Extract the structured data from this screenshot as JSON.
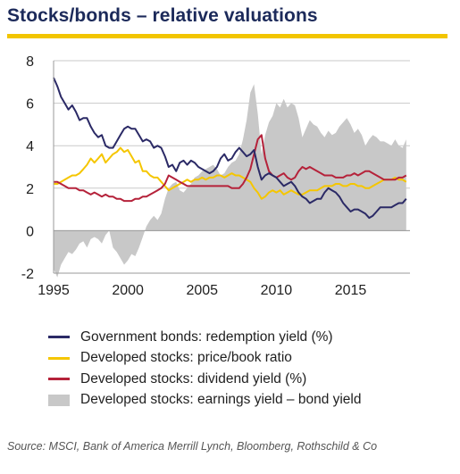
{
  "title": "Stocks/bonds – relative valuations",
  "source": "Source: MSCI, Bank of America Merrill Lynch, Bloomberg, Rothschild & Co",
  "colors": {
    "accent_rule": "#f2c500",
    "title": "#1c2a5a",
    "gov_bonds": "#2b2a66",
    "price_book": "#f5c600",
    "dividend": "#b5223a",
    "earnings_gap": "#c8c8c8"
  },
  "chart_data": {
    "type": "line",
    "title": "Stocks/bonds – relative valuations",
    "xlabel": "",
    "ylabel": "",
    "xlim": [
      1995,
      2019
    ],
    "ylim": [
      -2,
      8
    ],
    "x_ticks": [
      "1995",
      "2000",
      "2005",
      "2010",
      "2015"
    ],
    "y_ticks": [
      "8",
      "6",
      "4",
      "2",
      "0",
      "-2"
    ],
    "grid": "horizontal",
    "legend_position": "bottom",
    "series": [
      {
        "name": "Government bonds: redemption yield (%)",
        "type": "line",
        "color_key": "gov_bonds",
        "x": [
          1995.0,
          1995.25,
          1995.5,
          1995.75,
          1996.0,
          1996.25,
          1996.5,
          1996.75,
          1997.0,
          1997.25,
          1997.5,
          1997.75,
          1998.0,
          1998.25,
          1998.5,
          1998.75,
          1999.0,
          1999.25,
          1999.5,
          1999.75,
          2000.0,
          2000.25,
          2000.5,
          2000.75,
          2001.0,
          2001.25,
          2001.5,
          2001.75,
          2002.0,
          2002.25,
          2002.5,
          2002.75,
          2003.0,
          2003.25,
          2003.5,
          2003.75,
          2004.0,
          2004.25,
          2004.5,
          2004.75,
          2005.0,
          2005.25,
          2005.5,
          2005.75,
          2006.0,
          2006.25,
          2006.5,
          2006.75,
          2007.0,
          2007.25,
          2007.5,
          2007.75,
          2008.0,
          2008.25,
          2008.5,
          2008.75,
          2009.0,
          2009.25,
          2009.5,
          2009.75,
          2010.0,
          2010.25,
          2010.5,
          2010.75,
          2011.0,
          2011.25,
          2011.5,
          2011.75,
          2012.0,
          2012.25,
          2012.5,
          2012.75,
          2013.0,
          2013.25,
          2013.5,
          2013.75,
          2014.0,
          2014.25,
          2014.5,
          2014.75,
          2015.0,
          2015.25,
          2015.5,
          2015.75,
          2016.0,
          2016.25,
          2016.5,
          2016.75,
          2017.0,
          2017.25,
          2017.5,
          2017.75,
          2018.0,
          2018.25,
          2018.5,
          2018.75
        ],
        "values": [
          7.2,
          6.8,
          6.3,
          6.0,
          5.7,
          5.9,
          5.6,
          5.2,
          5.3,
          5.3,
          4.9,
          4.6,
          4.4,
          4.5,
          4.0,
          3.9,
          3.9,
          4.2,
          4.5,
          4.8,
          4.9,
          4.8,
          4.8,
          4.5,
          4.2,
          4.3,
          4.2,
          3.9,
          4.0,
          3.9,
          3.5,
          3.0,
          3.1,
          2.8,
          3.2,
          3.3,
          3.1,
          3.3,
          3.2,
          3.0,
          2.9,
          2.8,
          2.7,
          2.8,
          3.0,
          3.4,
          3.6,
          3.3,
          3.4,
          3.7,
          3.9,
          3.7,
          3.5,
          3.6,
          3.8,
          3.0,
          2.4,
          2.6,
          2.7,
          2.6,
          2.5,
          2.3,
          2.1,
          2.2,
          2.3,
          2.1,
          1.8,
          1.6,
          1.5,
          1.3,
          1.4,
          1.5,
          1.5,
          1.8,
          2.0,
          1.9,
          1.8,
          1.6,
          1.3,
          1.1,
          0.9,
          1.0,
          1.0,
          0.9,
          0.8,
          0.6,
          0.7,
          0.9,
          1.1,
          1.1,
          1.1,
          1.1,
          1.2,
          1.3,
          1.3,
          1.5
        ]
      },
      {
        "name": "Developed stocks: price/book ratio",
        "type": "line",
        "color_key": "price_book",
        "x": [
          1995.0,
          1995.25,
          1995.5,
          1995.75,
          1996.0,
          1996.25,
          1996.5,
          1996.75,
          1997.0,
          1997.25,
          1997.5,
          1997.75,
          1998.0,
          1998.25,
          1998.5,
          1998.75,
          1999.0,
          1999.25,
          1999.5,
          1999.75,
          2000.0,
          2000.25,
          2000.5,
          2000.75,
          2001.0,
          2001.25,
          2001.5,
          2001.75,
          2002.0,
          2002.25,
          2002.5,
          2002.75,
          2003.0,
          2003.25,
          2003.5,
          2003.75,
          2004.0,
          2004.25,
          2004.5,
          2004.75,
          2005.0,
          2005.25,
          2005.5,
          2005.75,
          2006.0,
          2006.25,
          2006.5,
          2006.75,
          2007.0,
          2007.25,
          2007.5,
          2007.75,
          2008.0,
          2008.25,
          2008.5,
          2008.75,
          2009.0,
          2009.25,
          2009.5,
          2009.75,
          2010.0,
          2010.25,
          2010.5,
          2010.75,
          2011.0,
          2011.25,
          2011.5,
          2011.75,
          2012.0,
          2012.25,
          2012.5,
          2012.75,
          2013.0,
          2013.25,
          2013.5,
          2013.75,
          2014.0,
          2014.25,
          2014.5,
          2014.75,
          2015.0,
          2015.25,
          2015.5,
          2015.75,
          2016.0,
          2016.25,
          2016.5,
          2016.75,
          2017.0,
          2017.25,
          2017.5,
          2017.75,
          2018.0,
          2018.25,
          2018.5,
          2018.75
        ],
        "values": [
          2.2,
          2.2,
          2.3,
          2.4,
          2.5,
          2.6,
          2.6,
          2.7,
          2.9,
          3.1,
          3.4,
          3.2,
          3.4,
          3.6,
          3.2,
          3.4,
          3.6,
          3.7,
          3.9,
          3.7,
          3.8,
          3.5,
          3.2,
          3.3,
          2.8,
          2.8,
          2.6,
          2.5,
          2.5,
          2.3,
          2.1,
          1.9,
          2.0,
          2.1,
          2.2,
          2.3,
          2.4,
          2.3,
          2.4,
          2.4,
          2.5,
          2.4,
          2.5,
          2.5,
          2.6,
          2.6,
          2.5,
          2.6,
          2.7,
          2.6,
          2.6,
          2.5,
          2.4,
          2.3,
          2.0,
          1.8,
          1.5,
          1.6,
          1.8,
          1.9,
          1.8,
          1.9,
          1.7,
          1.8,
          1.9,
          1.8,
          1.7,
          1.7,
          1.8,
          1.9,
          1.9,
          1.9,
          2.0,
          2.1,
          2.1,
          2.1,
          2.2,
          2.2,
          2.1,
          2.1,
          2.2,
          2.2,
          2.1,
          2.1,
          2.0,
          2.0,
          2.1,
          2.2,
          2.3,
          2.4,
          2.4,
          2.4,
          2.5,
          2.4,
          2.4,
          2.3
        ]
      },
      {
        "name": "Developed stocks: dividend yield (%)",
        "type": "line",
        "color_key": "dividend",
        "x": [
          1995.0,
          1995.25,
          1995.5,
          1995.75,
          1996.0,
          1996.25,
          1996.5,
          1996.75,
          1997.0,
          1997.25,
          1997.5,
          1997.75,
          1998.0,
          1998.25,
          1998.5,
          1998.75,
          1999.0,
          1999.25,
          1999.5,
          1999.75,
          2000.0,
          2000.25,
          2000.5,
          2000.75,
          2001.0,
          2001.25,
          2001.5,
          2001.75,
          2002.0,
          2002.25,
          2002.5,
          2002.75,
          2003.0,
          2003.25,
          2003.5,
          2003.75,
          2004.0,
          2004.25,
          2004.5,
          2004.75,
          2005.0,
          2005.25,
          2005.5,
          2005.75,
          2006.0,
          2006.25,
          2006.5,
          2006.75,
          2007.0,
          2007.25,
          2007.5,
          2007.75,
          2008.0,
          2008.25,
          2008.5,
          2008.75,
          2009.0,
          2009.25,
          2009.5,
          2009.75,
          2010.0,
          2010.25,
          2010.5,
          2010.75,
          2011.0,
          2011.25,
          2011.5,
          2011.75,
          2012.0,
          2012.25,
          2012.5,
          2012.75,
          2013.0,
          2013.25,
          2013.5,
          2013.75,
          2014.0,
          2014.25,
          2014.5,
          2014.75,
          2015.0,
          2015.25,
          2015.5,
          2015.75,
          2016.0,
          2016.25,
          2016.5,
          2016.75,
          2017.0,
          2017.25,
          2017.5,
          2017.75,
          2018.0,
          2018.25,
          2018.5,
          2018.75
        ],
        "values": [
          2.3,
          2.3,
          2.2,
          2.1,
          2.0,
          2.0,
          2.0,
          1.9,
          1.9,
          1.8,
          1.7,
          1.8,
          1.7,
          1.6,
          1.7,
          1.6,
          1.6,
          1.5,
          1.5,
          1.4,
          1.4,
          1.4,
          1.5,
          1.5,
          1.6,
          1.6,
          1.7,
          1.8,
          1.9,
          2.0,
          2.2,
          2.6,
          2.5,
          2.4,
          2.3,
          2.2,
          2.1,
          2.1,
          2.1,
          2.1,
          2.1,
          2.1,
          2.1,
          2.1,
          2.1,
          2.1,
          2.1,
          2.1,
          2.0,
          2.0,
          2.0,
          2.2,
          2.5,
          2.9,
          3.6,
          4.3,
          4.5,
          3.4,
          2.8,
          2.6,
          2.5,
          2.6,
          2.7,
          2.5,
          2.4,
          2.5,
          2.8,
          3.0,
          2.9,
          3.0,
          2.9,
          2.8,
          2.7,
          2.6,
          2.6,
          2.6,
          2.5,
          2.5,
          2.5,
          2.6,
          2.6,
          2.7,
          2.6,
          2.7,
          2.8,
          2.8,
          2.7,
          2.6,
          2.5,
          2.4,
          2.4,
          2.4,
          2.4,
          2.5,
          2.5,
          2.6
        ]
      },
      {
        "name": "Developed stocks: earnings yield – bond yield",
        "type": "area",
        "color_key": "earnings_gap",
        "x": [
          1995.0,
          1995.25,
          1995.5,
          1995.75,
          1996.0,
          1996.25,
          1996.5,
          1996.75,
          1997.0,
          1997.25,
          1997.5,
          1997.75,
          1998.0,
          1998.25,
          1998.5,
          1998.75,
          1999.0,
          1999.25,
          1999.5,
          1999.75,
          2000.0,
          2000.25,
          2000.5,
          2000.75,
          2001.0,
          2001.25,
          2001.5,
          2001.75,
          2002.0,
          2002.25,
          2002.5,
          2002.75,
          2003.0,
          2003.25,
          2003.5,
          2003.75,
          2004.0,
          2004.25,
          2004.5,
          2004.75,
          2005.0,
          2005.25,
          2005.5,
          2005.75,
          2006.0,
          2006.25,
          2006.5,
          2006.75,
          2007.0,
          2007.25,
          2007.5,
          2007.75,
          2008.0,
          2008.25,
          2008.5,
          2008.75,
          2009.0,
          2009.25,
          2009.5,
          2009.75,
          2010.0,
          2010.25,
          2010.5,
          2010.75,
          2011.0,
          2011.25,
          2011.5,
          2011.75,
          2012.0,
          2012.25,
          2012.5,
          2012.75,
          2013.0,
          2013.25,
          2013.5,
          2013.75,
          2014.0,
          2014.25,
          2014.5,
          2014.75,
          2015.0,
          2015.25,
          2015.5,
          2015.75,
          2016.0,
          2016.25,
          2016.5,
          2016.75,
          2017.0,
          2017.25,
          2017.5,
          2017.75,
          2018.0,
          2018.25,
          2018.5,
          2018.75
        ],
        "values": [
          -1.8,
          -2.2,
          -1.6,
          -1.3,
          -1.0,
          -1.1,
          -0.9,
          -0.6,
          -0.5,
          -0.8,
          -0.4,
          -0.3,
          -0.4,
          -0.6,
          -0.2,
          0.0,
          -0.8,
          -1.0,
          -1.3,
          -1.6,
          -1.4,
          -1.1,
          -1.2,
          -0.8,
          -0.3,
          0.2,
          0.5,
          0.7,
          0.5,
          0.8,
          1.5,
          2.0,
          2.2,
          2.3,
          1.9,
          1.8,
          2.0,
          2.2,
          2.5,
          2.6,
          2.8,
          2.9,
          3.0,
          3.1,
          2.9,
          2.6,
          2.7,
          3.0,
          3.2,
          3.3,
          3.6,
          4.3,
          5.2,
          6.5,
          6.9,
          5.5,
          3.6,
          4.5,
          5.1,
          5.4,
          6.0,
          5.8,
          6.2,
          5.8,
          6.0,
          5.9,
          5.3,
          4.4,
          4.8,
          5.2,
          5.0,
          4.9,
          4.6,
          4.4,
          4.7,
          4.5,
          4.6,
          4.9,
          5.1,
          5.3,
          5.0,
          4.6,
          4.8,
          4.5,
          4.0,
          4.3,
          4.5,
          4.4,
          4.2,
          4.2,
          4.1,
          4.0,
          4.3,
          4.0,
          3.9,
          4.3
        ]
      }
    ]
  }
}
